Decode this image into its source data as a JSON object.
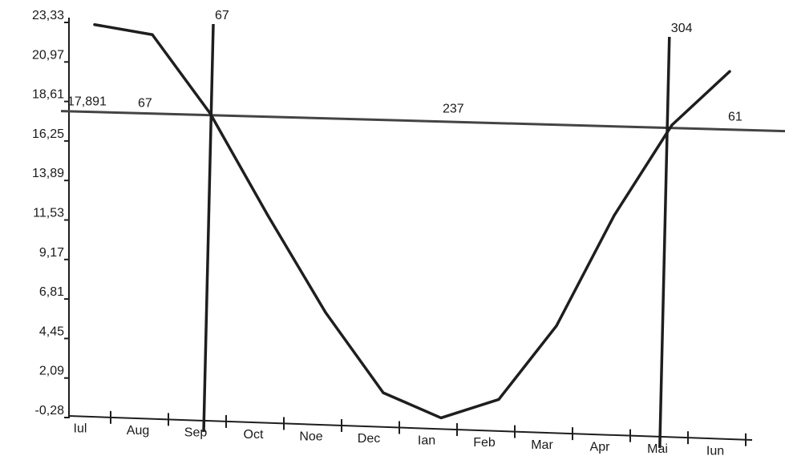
{
  "chart_data": {
    "type": "line",
    "title": "",
    "xlabel": "",
    "ylabel": "",
    "categories": [
      "Iul",
      "Aug",
      "Sep",
      "Oct",
      "Noe",
      "Dec",
      "Ian",
      "Feb",
      "Mar",
      "Apr",
      "Mai",
      "Iun"
    ],
    "y_ticks": [
      "23,33",
      "20,97",
      "18,61",
      "16,25",
      "13,89",
      "11,53",
      "9,17",
      "6,81",
      "4,45",
      "2,09",
      "-0,28"
    ],
    "ylim": [
      -0.28,
      23.33
    ],
    "series": [
      {
        "values": [
          23.2,
          22.6,
          17.9,
          11.8,
          6.0,
          1.2,
          -0.3,
          0.8,
          5.2,
          11.8,
          17.2,
          20.4
        ]
      }
    ],
    "threshold": {
      "value": 17.891,
      "label": "17,891"
    },
    "crossings": [
      {
        "position": 2.0,
        "label": "67"
      },
      {
        "position": 9.9,
        "label": "304"
      }
    ],
    "annotations": {
      "left_segment": "67",
      "middle_segment": "237",
      "right_segment": "61"
    },
    "colors": {
      "line": "#1e1e1e",
      "background": "#ffffff"
    }
  }
}
